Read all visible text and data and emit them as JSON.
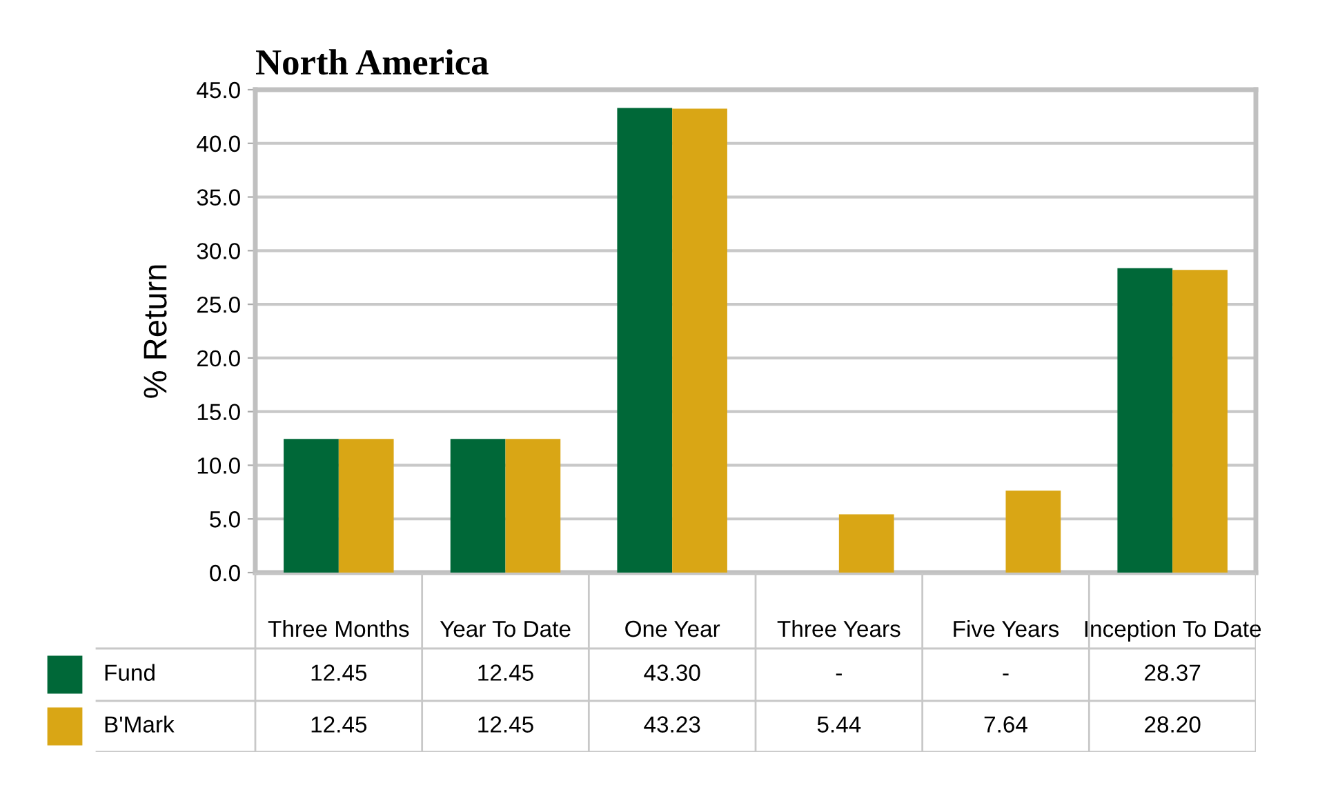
{
  "chart_data": {
    "type": "bar",
    "title": "North America",
    "ylabel": "% Return",
    "categories": [
      "Three Months",
      "Year To Date",
      "One Year",
      "Three Years",
      "Five Years",
      "Inception To Date"
    ],
    "series": [
      {
        "name": "Fund",
        "color": "#006838",
        "values": [
          12.45,
          12.45,
          43.3,
          null,
          null,
          28.37
        ],
        "value_labels": [
          "12.45",
          "12.45",
          "43.30",
          "-",
          "-",
          "28.37"
        ]
      },
      {
        "name": "B'Mark",
        "color": "#d9a615",
        "values": [
          12.45,
          12.45,
          43.23,
          5.44,
          7.64,
          28.2
        ],
        "value_labels": [
          "12.45",
          "12.45",
          "43.23",
          "5.44",
          "7.64",
          "28.20"
        ]
      }
    ],
    "ylim": [
      0,
      45
    ],
    "yticks": [
      {
        "value": 0,
        "label": "0.0"
      },
      {
        "value": 5,
        "label": "5.0"
      },
      {
        "value": 10,
        "label": "10.0"
      },
      {
        "value": 15,
        "label": "15.0"
      },
      {
        "value": 20,
        "label": "20.0"
      },
      {
        "value": 25,
        "label": "25.0"
      },
      {
        "value": 30,
        "label": "30.0"
      },
      {
        "value": 35,
        "label": "35.0"
      },
      {
        "value": 40,
        "label": "40.0"
      },
      {
        "value": 45,
        "label": "45.0"
      }
    ],
    "grid": "y",
    "legend": "bottom"
  }
}
